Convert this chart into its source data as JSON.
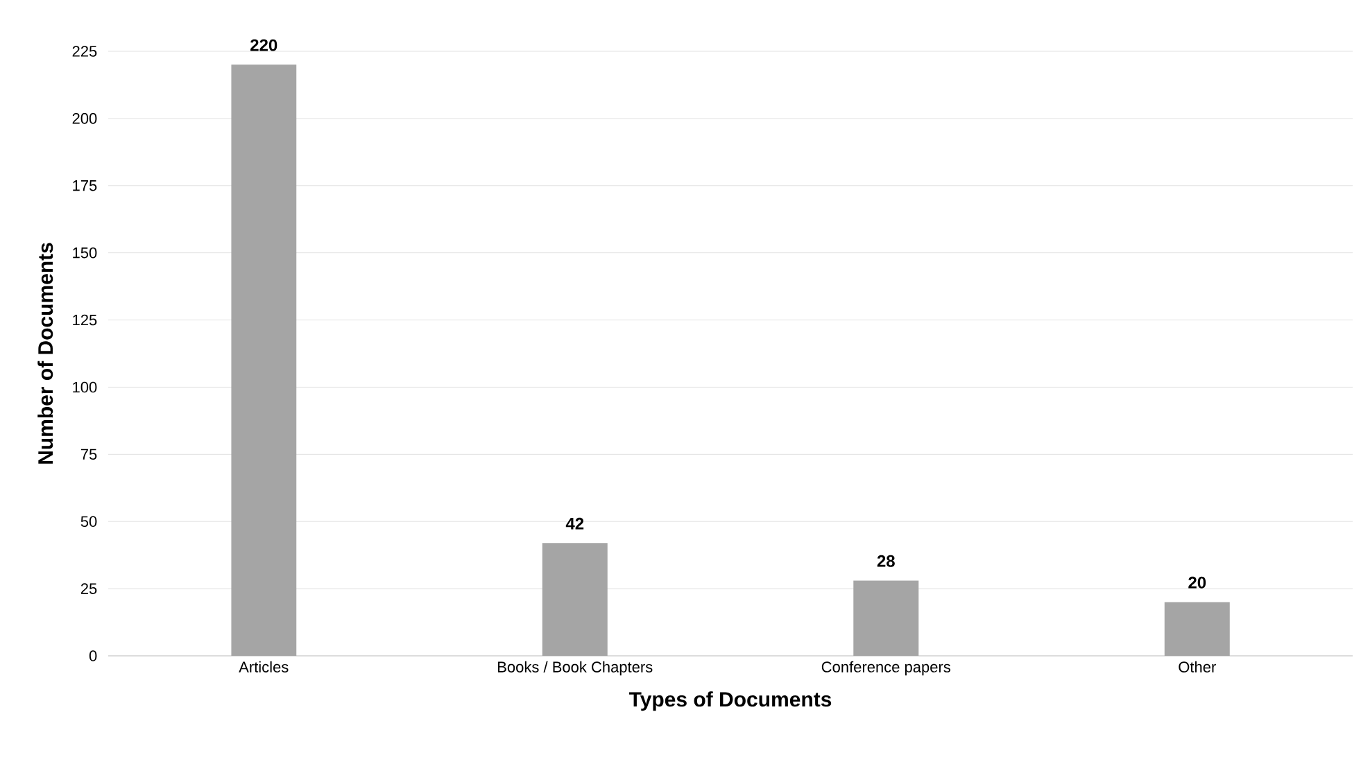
{
  "chart_data": {
    "type": "bar",
    "xlabel": "Types of Documents",
    "ylabel": "Number of Documents",
    "categories": [
      "Articles",
      "Books / Book Chapters",
      "Conference papers",
      "Other"
    ],
    "values": [
      220,
      42,
      28,
      20
    ],
    "color": "#a5a5a5",
    "ylim": [
      0,
      225
    ],
    "yticks": [
      0,
      25,
      50,
      75,
      100,
      125,
      150,
      175,
      200,
      225
    ],
    "grid": "y",
    "data_labels": true
  }
}
